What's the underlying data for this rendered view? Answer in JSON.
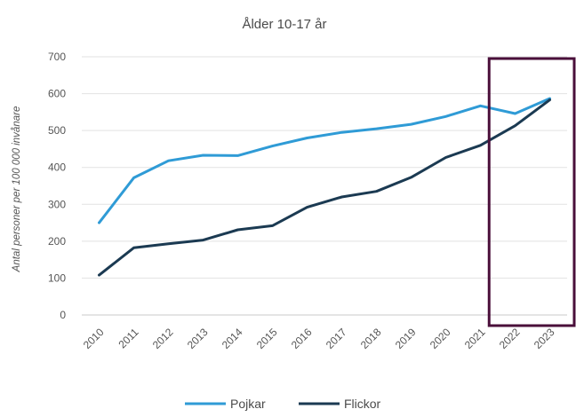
{
  "chart_data": {
    "type": "line",
    "title": "Ålder 10-17 år",
    "ylabel": "Antal personer per 100 000 invånare",
    "xlabel": "",
    "ylim": [
      0,
      700
    ],
    "yticks": [
      0,
      100,
      200,
      300,
      400,
      500,
      600,
      700
    ],
    "categories": [
      "2010",
      "2011",
      "2012",
      "2013",
      "2014",
      "2015",
      "2016",
      "2017",
      "2018",
      "2019",
      "2020",
      "2021",
      "2022",
      "2023"
    ],
    "series": [
      {
        "name": "Pojkar",
        "color": "#2f9bd6",
        "values": [
          250,
          372,
          418,
          433,
          432,
          458,
          480,
          495,
          505,
          517,
          538,
          567,
          546,
          587
        ]
      },
      {
        "name": "Flickor",
        "color": "#1b3a52",
        "values": [
          108,
          182,
          193,
          203,
          231,
          242,
          292,
          320,
          335,
          373,
          427,
          460,
          513,
          583
        ]
      }
    ],
    "grid": true,
    "legend": "bottom",
    "highlight": {
      "categories": [
        "2022",
        "2023"
      ],
      "color": "#4a0f3a"
    }
  }
}
